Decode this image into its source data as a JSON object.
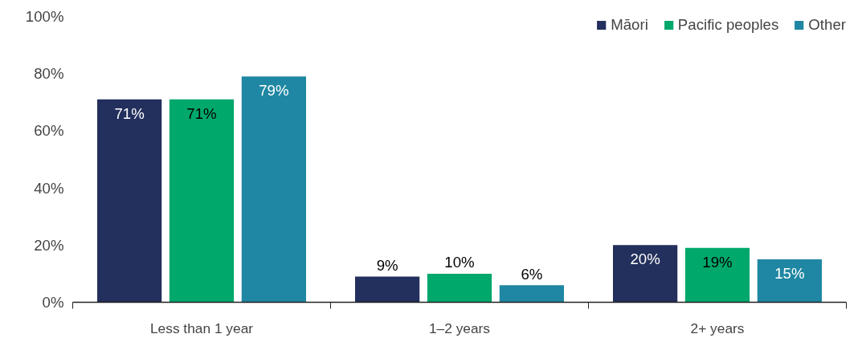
{
  "chart_data": {
    "type": "bar",
    "categories": [
      "Less than 1 year",
      "1–2 years",
      "2+ years"
    ],
    "series": [
      {
        "name": "Māori",
        "color": "#232f5c",
        "values": [
          71,
          9,
          20
        ]
      },
      {
        "name": "Pacific peoples",
        "color": "#00a86b",
        "values": [
          71,
          10,
          19
        ]
      },
      {
        "name": "Other",
        "color": "#1f87a3",
        "values": [
          79,
          6,
          15
        ]
      }
    ],
    "ylim": [
      0,
      100
    ],
    "yticks": [
      {
        "value": 0,
        "label": "0%"
      },
      {
        "value": 20,
        "label": "20%"
      },
      {
        "value": 40,
        "label": "40%"
      },
      {
        "value": 60,
        "label": "60%"
      },
      {
        "value": 80,
        "label": "80%"
      },
      {
        "value": 100,
        "label": "100%"
      }
    ],
    "value_labels": [
      [
        "71%",
        "9%",
        "20%"
      ],
      [
        "71%",
        "10%",
        "19%"
      ],
      [
        "79%",
        "6%",
        "15%"
      ]
    ],
    "legend": "top right",
    "grid": false
  }
}
